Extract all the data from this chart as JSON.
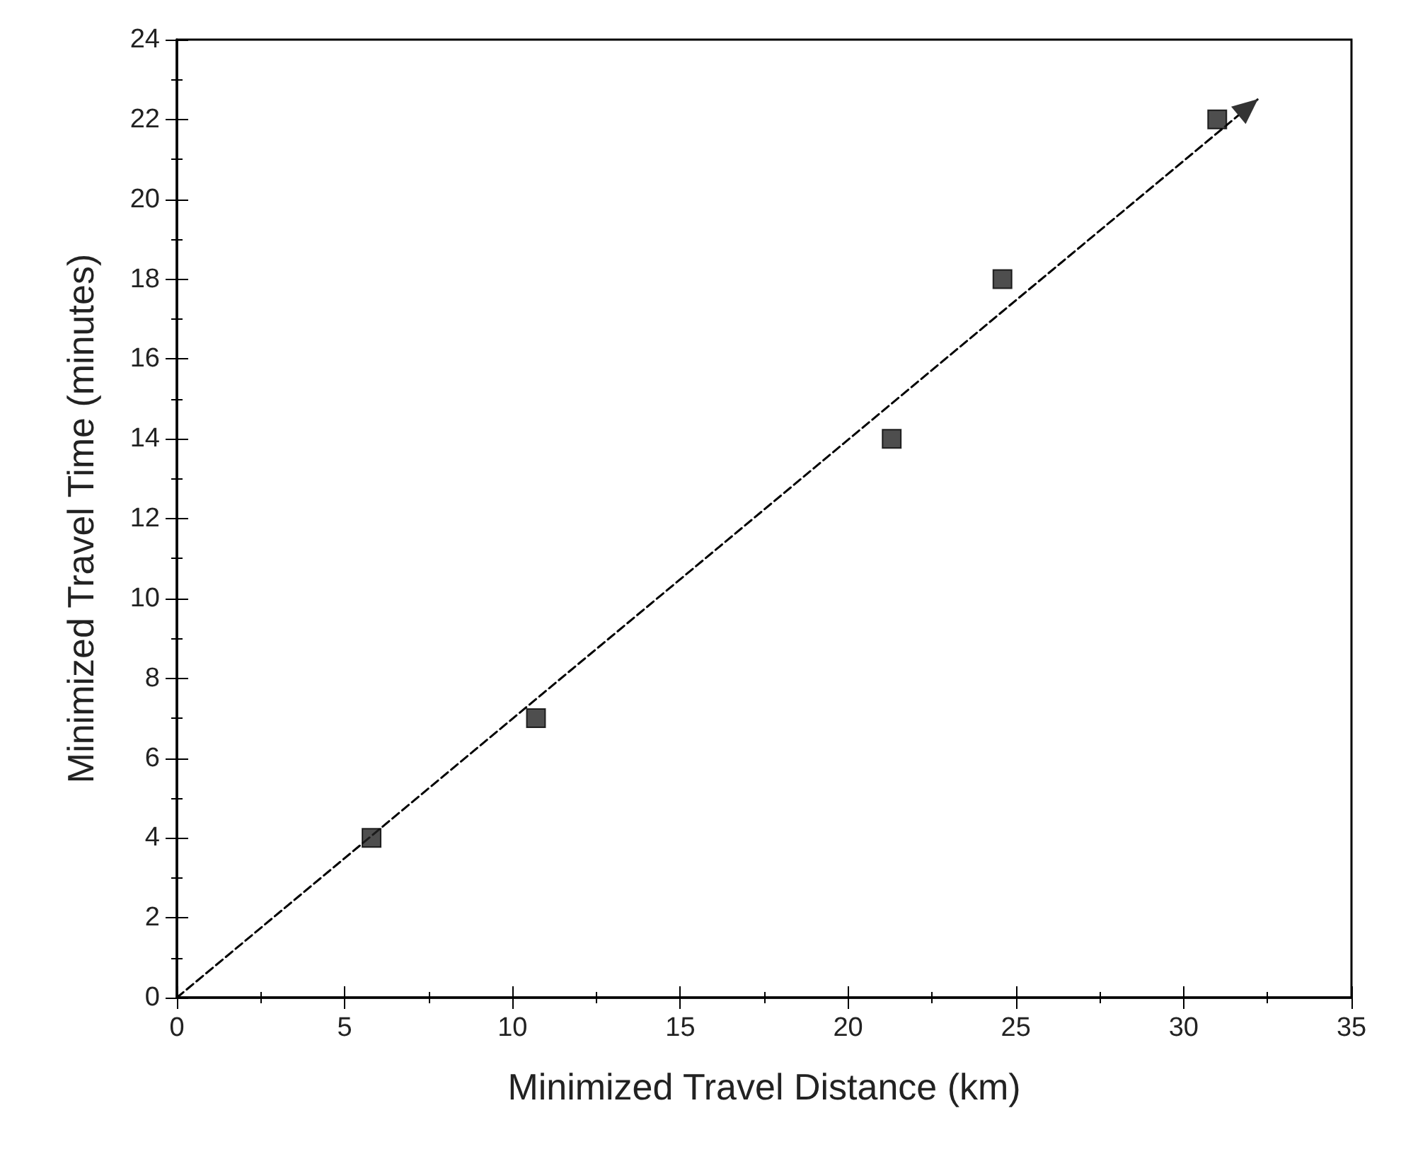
{
  "chart_data": {
    "type": "scatter",
    "xlabel": "Minimized Travel Distance (km)",
    "ylabel": "Minimized Travel Time (minutes)",
    "x": [
      5.8,
      10.7,
      21.3,
      24.6,
      31.0
    ],
    "series": [
      {
        "color": "#222222",
        "marker": "square",
        "values": [
          4,
          7,
          14,
          18,
          22
        ]
      },
      {
        "type": "line",
        "color": "#000000",
        "line_style": "dashed",
        "x": [
          0,
          32.2
        ],
        "values": [
          0,
          22.5
        ]
      }
    ],
    "xlim": [
      0,
      35
    ],
    "xticks": [
      0,
      5,
      10,
      15,
      20,
      25,
      30,
      35
    ],
    "ylim": [
      0,
      24
    ],
    "yticks": [
      0,
      2,
      4,
      6,
      8,
      10,
      12,
      14,
      16,
      18,
      20,
      22,
      24
    ],
    "grid": false
  }
}
